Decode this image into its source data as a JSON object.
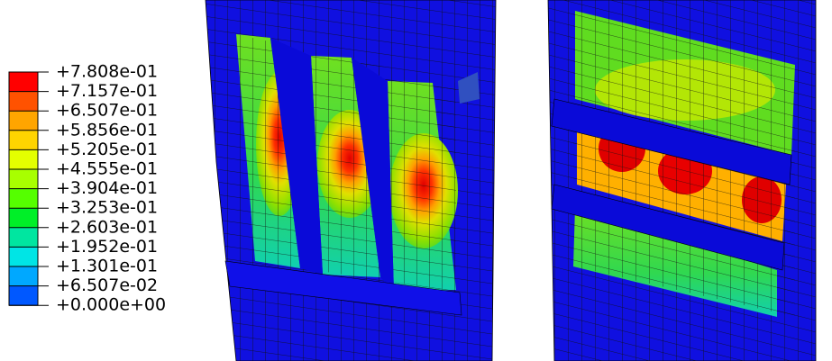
{
  "legend": {
    "labels": [
      "+7.808e-01",
      "+7.157e-01",
      "+6.507e-01",
      "+5.856e-01",
      "+5.205e-01",
      "+4.555e-01",
      "+3.904e-01",
      "+3.253e-01",
      "+2.603e-01",
      "+1.952e-01",
      "+1.301e-01",
      "+6.507e-02",
      "+0.000e+00"
    ],
    "colors": [
      "#ff0000",
      "#ff5200",
      "#ffa500",
      "#ffd400",
      "#e4ff00",
      "#a8ff00",
      "#55ff00",
      "#00ef28",
      "#00e6a0",
      "#00e5e5",
      "#00a8ff",
      "#0058ff",
      "#0000ff"
    ]
  }
}
